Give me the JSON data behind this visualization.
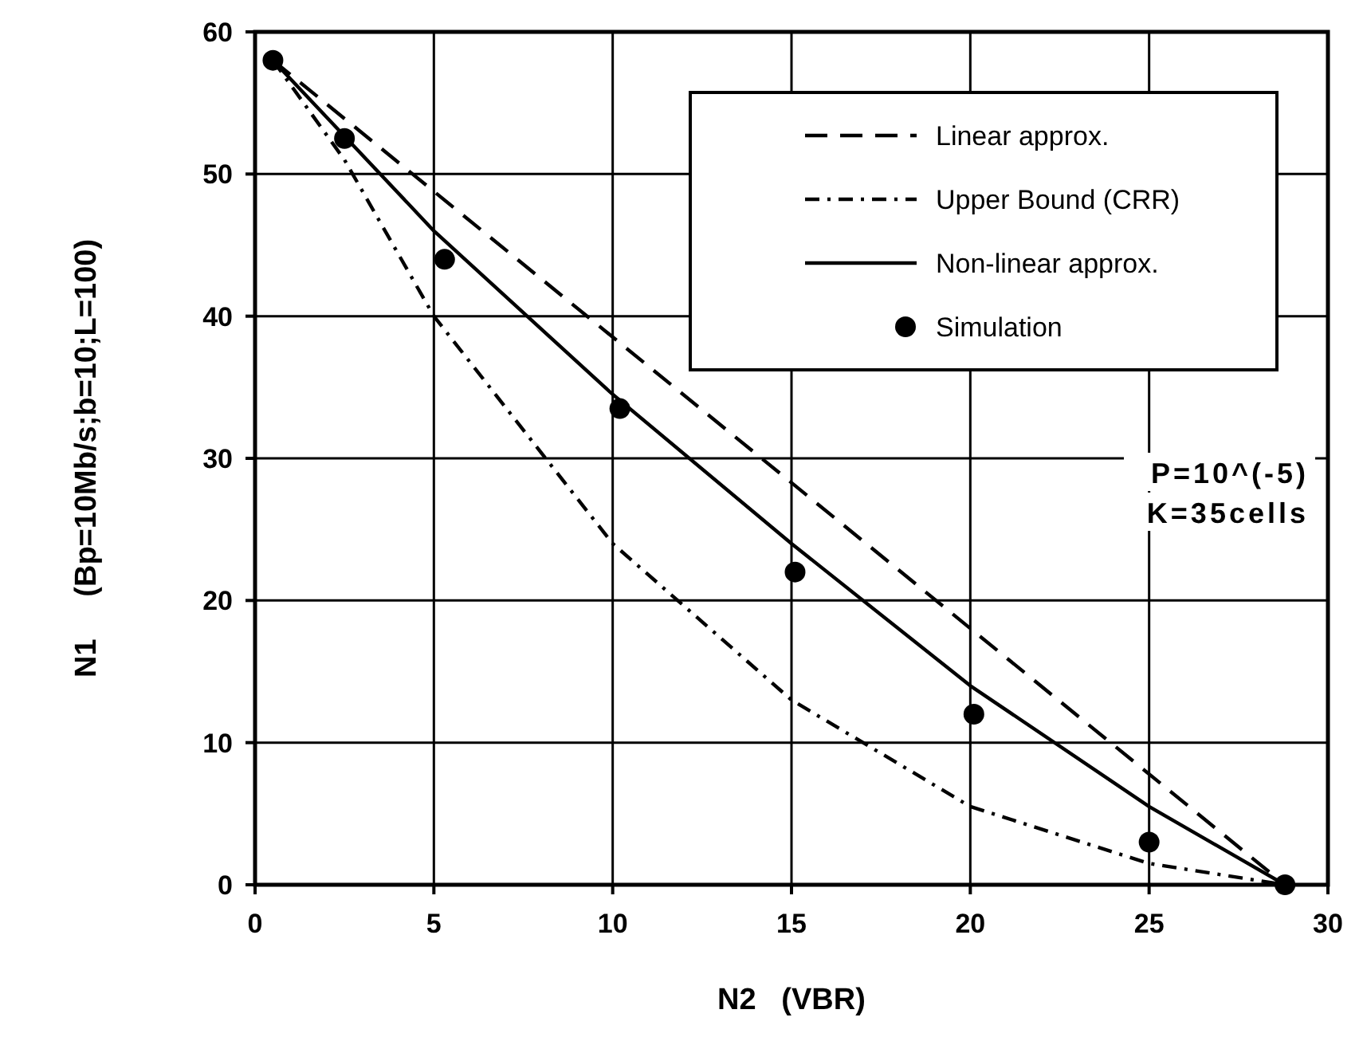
{
  "chart_data": {
    "type": "line",
    "xlabel": "N2   (VBR)",
    "ylabel": "N1     (Bp=10Mb/s;b=10;L=100)",
    "xlim": [
      0,
      30
    ],
    "xticks": [
      0,
      5,
      10,
      15,
      20,
      25,
      30
    ],
    "ylim": [
      0,
      60
    ],
    "yticks": [
      0,
      10,
      20,
      30,
      40,
      50,
      60
    ],
    "grid": true,
    "legend": "top right",
    "annotations": [
      "P=10^(-5)",
      "K=35cells"
    ],
    "series": [
      {
        "name": "Linear approx.",
        "color": "#000000",
        "line_style": "dashed",
        "x": [
          0.5,
          28.8
        ],
        "values": [
          58,
          0
        ]
      },
      {
        "name": "Upper Bound (CRR)",
        "color": "#000000",
        "line_style": "dotted",
        "x": [
          0.5,
          2.5,
          5,
          10,
          15,
          20,
          25,
          28.8
        ],
        "values": [
          58,
          51,
          40,
          24,
          13,
          5.5,
          1.5,
          0
        ]
      },
      {
        "name": "Non-linear approx.",
        "color": "#000000",
        "line_style": "solid",
        "x": [
          0.5,
          5,
          10,
          15,
          20,
          25,
          28.8
        ],
        "values": [
          58,
          46,
          34.5,
          24,
          14,
          5.5,
          0
        ]
      },
      {
        "name": "Simulation",
        "type": "scatter",
        "color": "#000000",
        "marker": "circle",
        "x": [
          0.5,
          2.5,
          5.3,
          10.2,
          15.1,
          20.1,
          25,
          28.8
        ],
        "values": [
          58,
          52.5,
          44,
          33.5,
          22,
          12,
          3,
          0
        ]
      }
    ]
  }
}
